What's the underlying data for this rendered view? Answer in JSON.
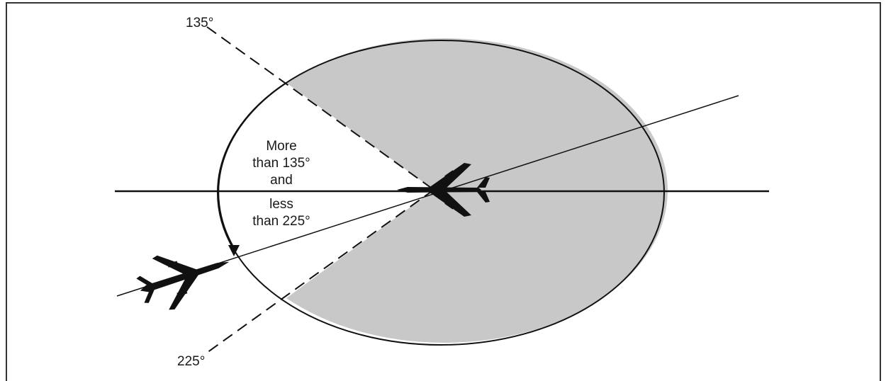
{
  "diagram": {
    "labels": {
      "angle_135": "135°",
      "angle_225": "225°",
      "sector_line1": "More",
      "sector_line2": "than 135°",
      "sector_line3": "and",
      "sector_line4": "less",
      "sector_line5": "than 225°"
    },
    "colors": {
      "shaded_zone": "#c8c8c8",
      "lines": "#111111",
      "aircraft": "#111111",
      "frame": "#333333"
    },
    "icons": {
      "lead_aircraft": "airplane-icon",
      "overtaking_aircraft": "airplane-icon"
    }
  }
}
